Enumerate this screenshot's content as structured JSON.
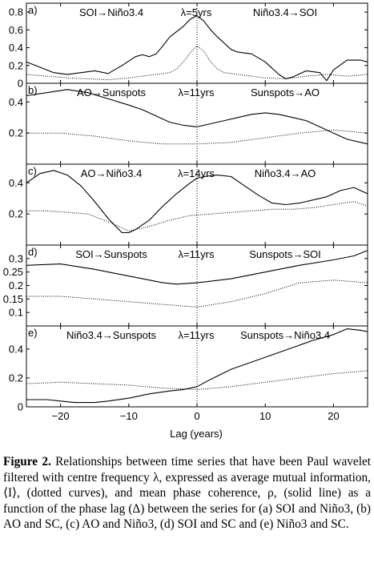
{
  "caption": {
    "label": "Figure 2.",
    "text": "Relationships between time series that have been Paul wavelet filtered with centre frequency λ, expressed as average mutual information, ⟨I⟩, (dotted curves), and mean phase coherence, ρ, (solid line) as a function of the phase lag (Δ) between the series for (a) SOI and Niño3, (b) AO and SC, (c) AO and Niño3, (d) SOI and SC and (e) Niño3 and SC."
  },
  "figure": {
    "x_axis_label": "Lag (years)"
  },
  "chart_data": [
    {
      "type": "line",
      "panel": "a)",
      "left_label": "SOI→Niño3.4",
      "lambda": "λ=5yrs",
      "right_label": "Niño3.4→SOI",
      "xlim": [
        -25,
        25
      ],
      "ylim": [
        0,
        0.9
      ],
      "xticks": [
        -20,
        -10,
        0,
        10,
        20
      ],
      "yticks": [
        0,
        0.2,
        0.4,
        0.6,
        0.8
      ],
      "ytick_labels": [
        "0",
        "0.2",
        "0.4",
        "0.6",
        "0.8"
      ],
      "series": [
        {
          "style": "solid",
          "x": [
            -25,
            -23,
            -21,
            -19,
            -17,
            -15,
            -13,
            -11,
            -9,
            -8,
            -7,
            -6,
            -5,
            -4,
            -3,
            -2,
            -1,
            0,
            1,
            2,
            3,
            4,
            5,
            6,
            7,
            8,
            10,
            12,
            13,
            14,
            16,
            18,
            19,
            20,
            22,
            24,
            25
          ],
          "y": [
            0.24,
            0.18,
            0.12,
            0.1,
            0.12,
            0.14,
            0.11,
            0.2,
            0.3,
            0.32,
            0.3,
            0.33,
            0.42,
            0.52,
            0.58,
            0.64,
            0.72,
            0.76,
            0.7,
            0.6,
            0.52,
            0.45,
            0.38,
            0.35,
            0.34,
            0.33,
            0.24,
            0.1,
            0.05,
            0.07,
            0.14,
            0.12,
            0.03,
            0.15,
            0.26,
            0.26,
            0.24
          ]
        },
        {
          "style": "dotted",
          "x": [
            -25,
            -22,
            -19,
            -16,
            -13,
            -10,
            -8,
            -6,
            -4,
            -3,
            -2,
            -1,
            0,
            1,
            2,
            3,
            4,
            6,
            8,
            10,
            13,
            16,
            19,
            22,
            25
          ],
          "y": [
            0.1,
            0.08,
            0.06,
            0.05,
            0.04,
            0.06,
            0.08,
            0.1,
            0.12,
            0.16,
            0.24,
            0.34,
            0.42,
            0.36,
            0.24,
            0.16,
            0.12,
            0.1,
            0.08,
            0.06,
            0.05,
            0.08,
            0.1,
            0.08,
            0.1
          ]
        }
      ]
    },
    {
      "type": "line",
      "panel": "b)",
      "left_label": "AO→Sunspots",
      "lambda": "λ=11yrs",
      "right_label": "Sunspots→AO",
      "xlim": [
        -25,
        25
      ],
      "ylim": [
        0,
        0.52
      ],
      "xticks": [
        -20,
        -10,
        0,
        10,
        20
      ],
      "yticks": [
        0.2,
        0.4
      ],
      "ytick_labels": [
        "0.2",
        "0.4"
      ],
      "series": [
        {
          "style": "solid",
          "x": [
            -25,
            -22,
            -19,
            -16,
            -13,
            -10,
            -8,
            -6,
            -4,
            -2,
            0,
            2,
            4,
            6,
            8,
            10,
            12,
            14,
            16,
            18,
            20,
            22,
            24,
            25
          ],
          "y": [
            0.44,
            0.46,
            0.48,
            0.46,
            0.42,
            0.38,
            0.35,
            0.31,
            0.27,
            0.25,
            0.24,
            0.26,
            0.28,
            0.3,
            0.32,
            0.33,
            0.32,
            0.3,
            0.28,
            0.24,
            0.2,
            0.16,
            0.14,
            0.13
          ]
        },
        {
          "style": "dotted",
          "x": [
            -25,
            -20,
            -15,
            -10,
            -5,
            0,
            5,
            10,
            15,
            20,
            25
          ],
          "y": [
            0.2,
            0.2,
            0.18,
            0.15,
            0.13,
            0.13,
            0.14,
            0.17,
            0.2,
            0.22,
            0.2
          ]
        }
      ]
    },
    {
      "type": "line",
      "panel": "c)",
      "left_label": "AO→Niño3.4",
      "lambda": "λ=14yrs",
      "right_label": "Niño3.4→AO",
      "xlim": [
        -25,
        25
      ],
      "ylim": [
        0,
        0.52
      ],
      "xticks": [
        -20,
        -10,
        0,
        10,
        20
      ],
      "yticks": [
        0.2,
        0.4
      ],
      "ytick_labels": [
        "0.2",
        "0.4"
      ],
      "series": [
        {
          "style": "solid",
          "x": [
            -25,
            -23,
            -21,
            -19,
            -17,
            -15,
            -13,
            -11,
            -10,
            -9,
            -7,
            -5,
            -3,
            -1,
            0,
            1,
            3,
            5,
            7,
            9,
            11,
            13,
            15,
            17,
            19,
            21,
            23,
            25
          ],
          "y": [
            0.4,
            0.46,
            0.48,
            0.45,
            0.38,
            0.28,
            0.17,
            0.08,
            0.08,
            0.1,
            0.16,
            0.25,
            0.33,
            0.4,
            0.43,
            0.44,
            0.45,
            0.44,
            0.38,
            0.32,
            0.27,
            0.26,
            0.27,
            0.29,
            0.31,
            0.35,
            0.37,
            0.33
          ]
        },
        {
          "style": "dotted",
          "x": [
            -25,
            -22,
            -19,
            -16,
            -13,
            -10,
            -7,
            -4,
            -1,
            2,
            5,
            8,
            11,
            14,
            17,
            20,
            23,
            25
          ],
          "y": [
            0.22,
            0.22,
            0.21,
            0.2,
            0.15,
            0.09,
            0.12,
            0.16,
            0.19,
            0.2,
            0.21,
            0.22,
            0.23,
            0.23,
            0.24,
            0.26,
            0.28,
            0.25
          ]
        }
      ]
    },
    {
      "type": "line",
      "panel": "d)",
      "left_label": "SOI→Sunspots",
      "lambda": "λ=11yrs",
      "right_label": "Sunspots→SOI",
      "xlim": [
        -25,
        25
      ],
      "ylim": [
        0.05,
        0.35
      ],
      "xticks": [
        -20,
        -10,
        0,
        10,
        20
      ],
      "yticks": [
        0.1,
        0.15,
        0.2,
        0.25,
        0.3
      ],
      "ytick_labels": [
        "0.1",
        "0.15",
        "0.2",
        "0.25",
        "0.3"
      ],
      "series": [
        {
          "style": "solid",
          "x": [
            -25,
            -20,
            -15,
            -10,
            -5,
            -3,
            0,
            5,
            10,
            15,
            20,
            23,
            25
          ],
          "y": [
            0.275,
            0.28,
            0.26,
            0.235,
            0.21,
            0.205,
            0.21,
            0.225,
            0.25,
            0.275,
            0.295,
            0.31,
            0.33
          ]
        },
        {
          "style": "dotted",
          "x": [
            -25,
            -20,
            -15,
            -10,
            -5,
            0,
            5,
            10,
            15,
            20,
            25
          ],
          "y": [
            0.16,
            0.16,
            0.15,
            0.14,
            0.13,
            0.12,
            0.14,
            0.17,
            0.21,
            0.22,
            0.21
          ]
        }
      ]
    },
    {
      "type": "line",
      "panel": "e)",
      "left_label": "Niño3.4→Sunspots",
      "lambda": "λ=11yrs",
      "right_label": "Sunspots→Niño3.4",
      "xlim": [
        -25,
        25
      ],
      "ylim": [
        0,
        0.56
      ],
      "xticks": [
        -20,
        -10,
        0,
        10,
        20
      ],
      "yticks": [
        0,
        0.2,
        0.4
      ],
      "ytick_labels": [
        "0",
        "0.2",
        "0.4"
      ],
      "series": [
        {
          "style": "solid",
          "x": [
            -25,
            -22,
            -20,
            -18,
            -15,
            -13,
            -10,
            -7,
            -4,
            -2,
            0,
            2,
            5,
            8,
            11,
            14,
            17,
            20,
            22,
            24,
            25
          ],
          "y": [
            0.05,
            0.05,
            0.04,
            0.03,
            0.03,
            0.04,
            0.06,
            0.09,
            0.11,
            0.12,
            0.14,
            0.19,
            0.26,
            0.31,
            0.36,
            0.41,
            0.46,
            0.5,
            0.54,
            0.53,
            0.52
          ]
        },
        {
          "style": "dotted",
          "x": [
            -25,
            -20,
            -15,
            -10,
            -5,
            0,
            5,
            10,
            15,
            20,
            25
          ],
          "y": [
            0.16,
            0.17,
            0.16,
            0.15,
            0.13,
            0.12,
            0.14,
            0.17,
            0.2,
            0.23,
            0.25
          ]
        }
      ]
    }
  ]
}
